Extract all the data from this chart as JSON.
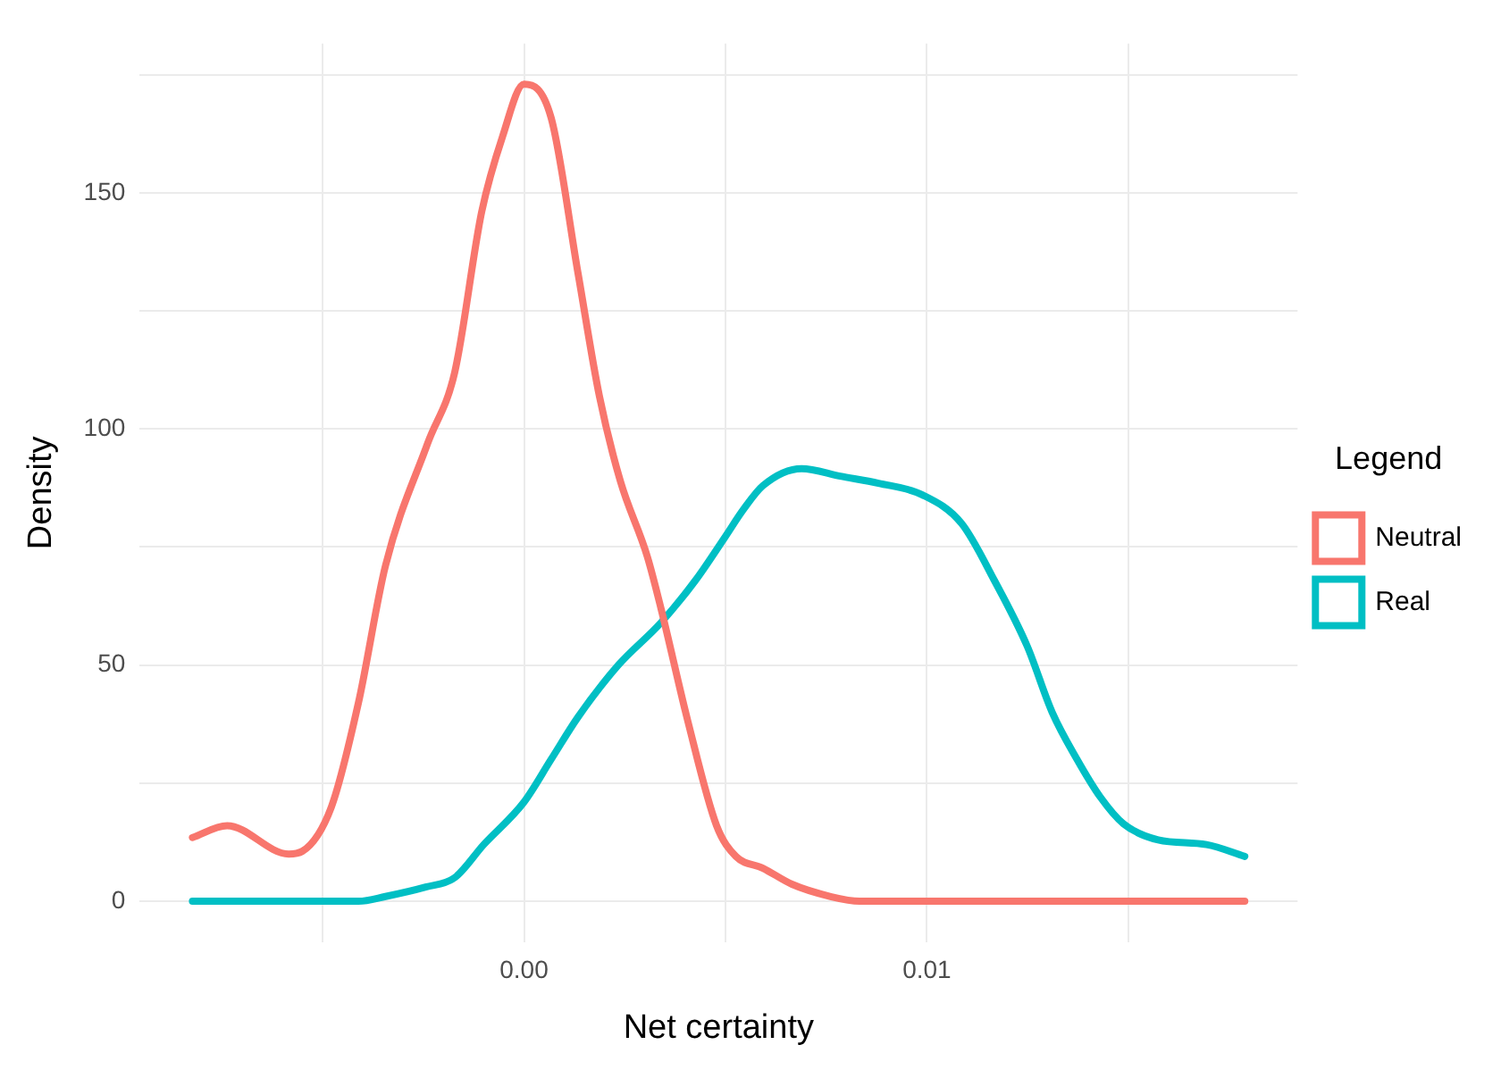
{
  "chart_data": {
    "type": "line",
    "xlabel": "Net certainty",
    "ylabel": "Density",
    "legend_title": "Legend",
    "legend": "right",
    "grid": true,
    "marker": "none",
    "line_style": "solid",
    "xlim": [
      -0.00954,
      0.0192
    ],
    "xticks": [
      {
        "value": -0.005,
        "label": null
      },
      {
        "value": 0,
        "label": "0.00"
      },
      {
        "value": 0.005,
        "label": null
      },
      {
        "value": 0.01,
        "label": "0.01"
      },
      {
        "value": 0.015,
        "label": null
      }
    ],
    "ylim": [
      -8.65,
      181.6
    ],
    "yticks": [
      0,
      {
        "value": 25,
        "label": null
      },
      50,
      {
        "value": 75,
        "label": null
      },
      100,
      {
        "value": 125,
        "label": null
      },
      150,
      {
        "value": 175,
        "label": null
      }
    ],
    "series": [
      {
        "name": "Neutral",
        "color": "#f8766d",
        "x": [
          -0.00823,
          -0.00737,
          -0.00584,
          -0.0055,
          -0.00478,
          -0.00411,
          -0.00344,
          -0.00239,
          -0.00172,
          -0.00105,
          -0.00053,
          0,
          0.00067,
          0.00134,
          0.00187,
          0.00239,
          0.00306,
          0.0034,
          0.00407,
          0.00478,
          0.00526,
          0.00593,
          0.00665,
          0.00761,
          0.00833,
          0.01789
        ],
        "values": [
          13.5,
          16,
          10,
          10.6,
          20,
          42,
          71,
          97,
          112,
          146,
          162,
          173,
          166,
          133,
          107,
          89,
          73,
          62,
          38,
          16,
          9.5,
          7,
          3.6,
          1,
          0,
          0
        ]
      },
      {
        "name": "Real",
        "color": "#00bfc4",
        "x": [
          -0.00823,
          -0.00651,
          -0.00411,
          -0.00344,
          -0.00244,
          -0.00172,
          -0.001,
          0,
          0.00067,
          0.00134,
          0.00234,
          0.0034,
          0.00426,
          0.00498,
          0.00545,
          0.00593,
          0.00689,
          0.00785,
          0.0088,
          0.0099,
          0.01086,
          0.01167,
          0.01249,
          0.01311,
          0.01373,
          0.01431,
          0.01488,
          0.01574,
          0.01694,
          0.01789
        ],
        "values": [
          0,
          0,
          0,
          1,
          3,
          5,
          12,
          21,
          30,
          39,
          50,
          59,
          68,
          77,
          83,
          88,
          91.6,
          90,
          88.5,
          86,
          80,
          68,
          54,
          40,
          30,
          22,
          16.4,
          13,
          12,
          9.5
        ]
      }
    ]
  }
}
